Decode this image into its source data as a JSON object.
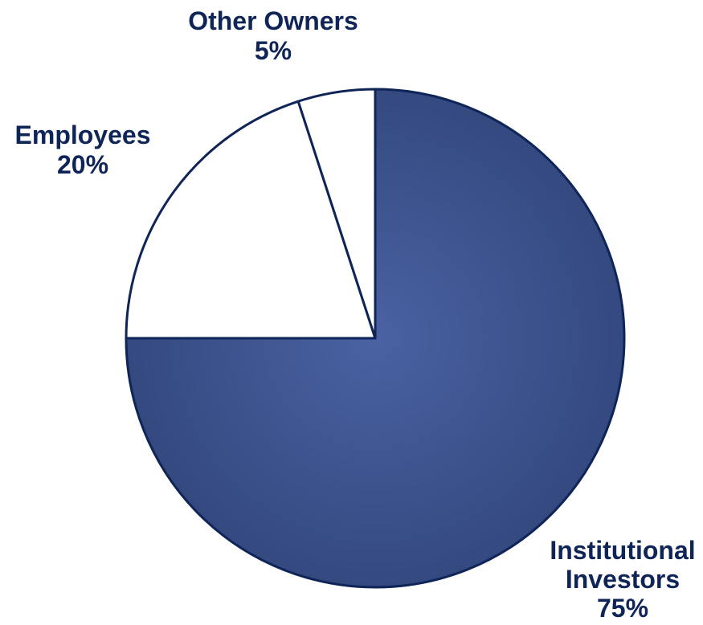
{
  "chart_data": {
    "type": "pie",
    "slices": [
      {
        "name": "Institutional Investors",
        "label_lines": [
          "Institutional",
          "Investors"
        ],
        "value": 75,
        "value_label": "75%",
        "color": "#3d5390"
      },
      {
        "name": "Employees",
        "label_lines": [
          "Employees"
        ],
        "value": 20,
        "value_label": "20%",
        "color": "#ffffff"
      },
      {
        "name": "Other Owners",
        "label_lines": [
          "Other Owners"
        ],
        "value": 5,
        "value_label": "5%",
        "color": "#ffffff"
      }
    ],
    "start_angle_deg": 0,
    "direction": "clockwise",
    "outline_color": "#0f2457",
    "label_color": "#0f2457"
  }
}
